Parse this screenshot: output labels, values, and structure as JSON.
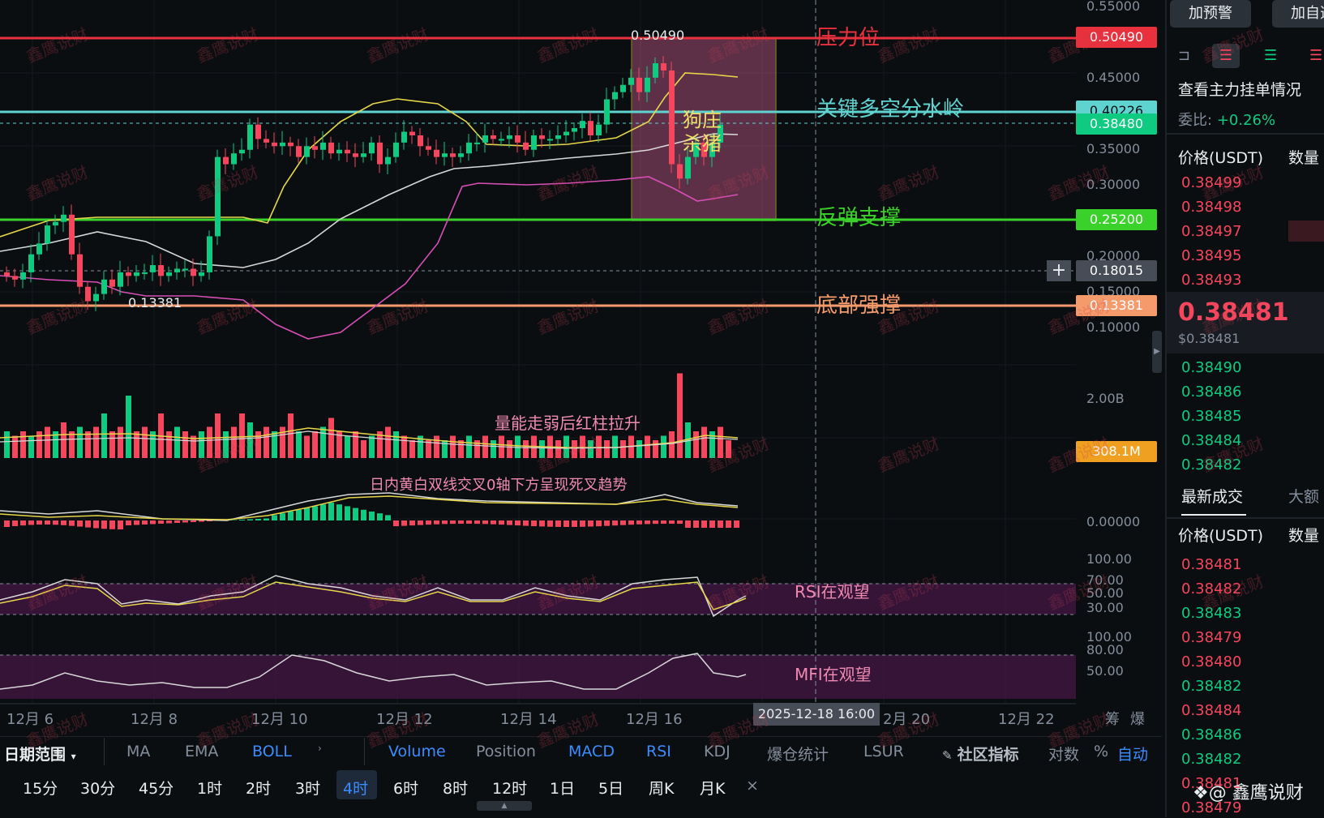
{
  "price_axis": [
    "0.55000",
    "0.45000",
    "0.35000",
    "0.30000",
    "0.20000",
    "0.15000",
    "0.10000"
  ],
  "volume_axis": [
    "2.00B"
  ],
  "macd_axis": [
    "0.00000"
  ],
  "rsi_axis": [
    "100.00",
    "70.00",
    "50.00",
    "30.00"
  ],
  "mfi_axis": [
    "100.00",
    "80.00",
    "50.00"
  ],
  "price_boxes": {
    "resistance": "0.50490",
    "key": "0.40226",
    "current": "0.38480",
    "support": "0.25200",
    "crosshair": "0.18015",
    "bottom": "0.13381",
    "volume": "308.1M"
  },
  "annotations": {
    "high_marker": "0.50490",
    "low_marker": "0.13381",
    "resistance": "压力位",
    "key_level": "关键多空分水岭",
    "rebound_support": "反弹支撑",
    "bottom_support": "底部强撑",
    "dog_line1": "狗庄",
    "dog_line2": "杀猪",
    "volume_note": "量能走弱后红柱拉升",
    "macd_note": "日内黄白双线交叉0轴下方呈现死叉趋势",
    "rsi_note": "RSI在观望",
    "mfi_note": "MFI在观望"
  },
  "dates": [
    "12月 6",
    "12月 8",
    "12月 10",
    "12月 12",
    "12月 14",
    "12月 16",
    "2月 20",
    "12月 22"
  ],
  "crosshair_date": "2025-12-18 16:00",
  "corner_labels": [
    "筹",
    "爆"
  ],
  "indicators": {
    "range_label": "日期范围",
    "items": [
      "MA",
      "EMA",
      "BOLL",
      "Volume",
      "Position",
      "MACD",
      "RSI",
      "KDJ",
      "爆仓统计",
      "LSUR"
    ],
    "community": "社区指标",
    "log": "对数",
    "pct": "%",
    "auto": "自动"
  },
  "timeframes": [
    "15分",
    "30分",
    "45分",
    "1时",
    "2时",
    "3时",
    "4时",
    "6时",
    "8时",
    "12时",
    "1日",
    "5日",
    "周K",
    "月K"
  ],
  "active_timeframe": "4时",
  "sidebar": {
    "alert_btn": "加预警",
    "watch_btn": "加自选",
    "order_title": "查看主力挂单情况",
    "ratio_label": "委比:",
    "ratio_value": "+0.26%",
    "price_col": "价格(USDT)",
    "qty_col": "数量",
    "asks": [
      "0.38499",
      "0.38498",
      "0.38497",
      "0.38495",
      "0.38493"
    ],
    "last_price": "0.38481",
    "last_usd": "$0.38481",
    "bids": [
      "0.38490",
      "0.38486",
      "0.38485",
      "0.38484",
      "0.38482"
    ],
    "trades_tab": "最新成交",
    "big_tab": "大额",
    "trades": [
      {
        "p": "0.38481",
        "c": "red"
      },
      {
        "p": "0.38482",
        "c": "red"
      },
      {
        "p": "0.38483",
        "c": "green"
      },
      {
        "p": "0.38479",
        "c": "red"
      },
      {
        "p": "0.38480",
        "c": "red"
      },
      {
        "p": "0.38482",
        "c": "green"
      },
      {
        "p": "0.38484",
        "c": "red"
      },
      {
        "p": "0.38486",
        "c": "green"
      },
      {
        "p": "0.38482",
        "c": "green"
      },
      {
        "p": "0.38481",
        "c": "red"
      },
      {
        "p": "0.38479",
        "c": "red"
      }
    ],
    "brand": "@ 鑫鹰说财"
  },
  "watermark": "鑫鹰说财",
  "colors": {
    "up": "#0ecb81",
    "down": "#f6465d",
    "resistance": "#e8313c",
    "key": "#5fd3d0",
    "support": "#3bd12b",
    "bottom": "#f59a6a",
    "boll_mid": "#d8d8d8",
    "boll_up": "#e6d74a",
    "boll_low": "#d64fb6"
  }
}
